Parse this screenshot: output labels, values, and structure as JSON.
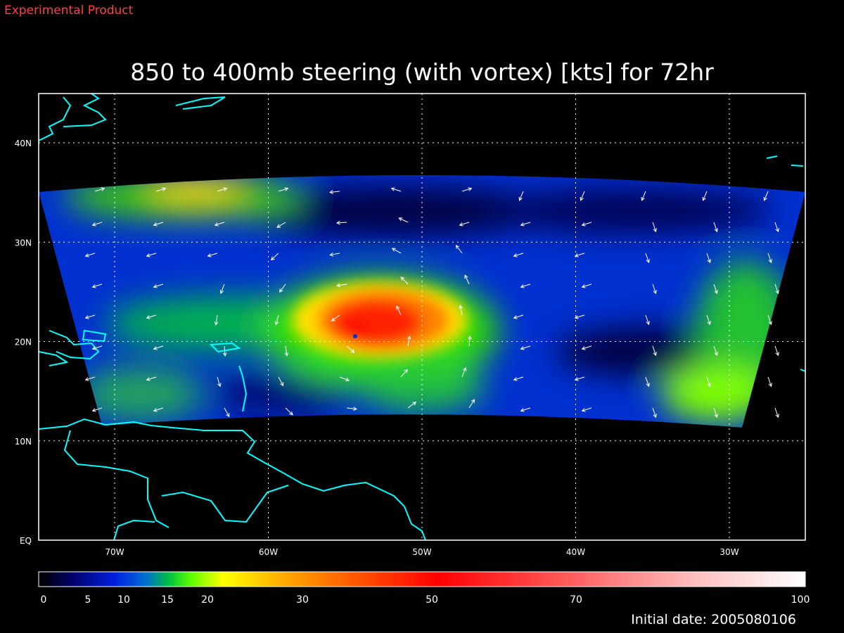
{
  "header": {
    "label": "Experimental Product"
  },
  "title": "850 to 400mb steering (with vortex) [kts] for 72hr",
  "map": {
    "lat_labels": [
      "40N",
      "30N",
      "20N",
      "10N",
      "EQ"
    ],
    "lon_labels": [
      "70W",
      "60W",
      "50W",
      "40W",
      "30W"
    ]
  },
  "colorbar": {
    "labels": [
      0,
      5,
      10,
      15,
      20,
      30,
      50,
      70,
      100
    ]
  },
  "footer": {
    "initial_date": "Initial date: 2005080106"
  }
}
